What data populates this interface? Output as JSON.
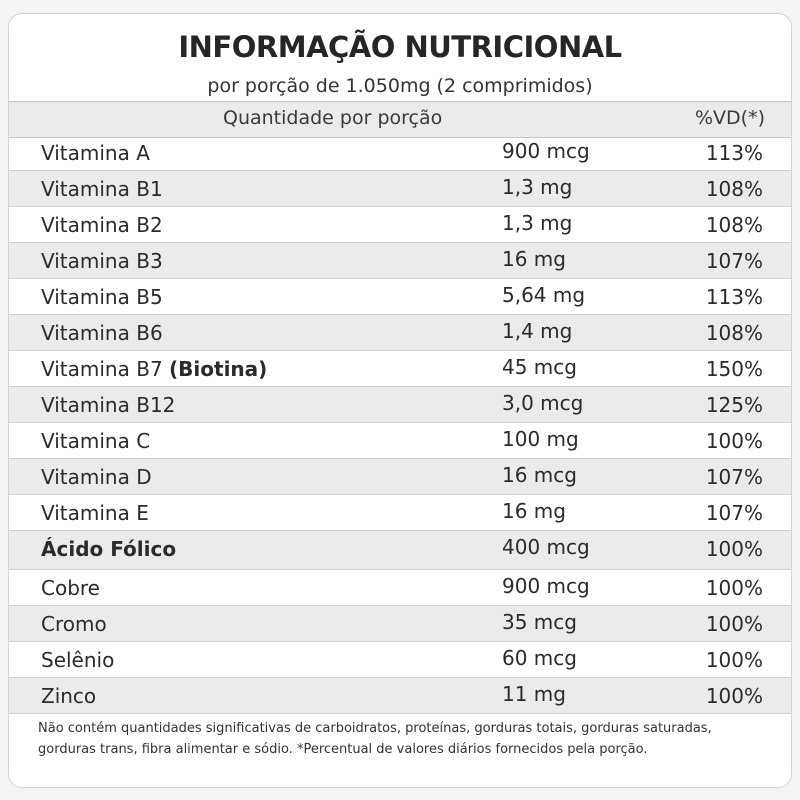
{
  "title": "INFORMAÇÃO NUTRICIONAL",
  "subtitle": "por porção de 1.050mg (2 comprimidos)",
  "header": {
    "quantity_label": "Quantidade por porção",
    "dv_label": "%VD(*)"
  },
  "rows": [
    {
      "name": "Vitamina A",
      "qty": "900 mcg",
      "vd": "113%"
    },
    {
      "name": "Vitamina B1",
      "qty": "1,3 mg",
      "vd": "108%"
    },
    {
      "name": "Vitamina B2",
      "qty": "1,3 mg",
      "vd": "108%"
    },
    {
      "name": "Vitamina B3",
      "qty": "16 mg",
      "vd": "107%"
    },
    {
      "name": "Vitamina B5",
      "qty": "5,64 mg",
      "vd": "113%"
    },
    {
      "name": "Vitamina B6",
      "qty": "1,4 mg",
      "vd": "108%"
    },
    {
      "name": "Vitamina B7",
      "name_extra": "(Biotina)",
      "qty": "45 mcg",
      "vd": "150%"
    },
    {
      "name": "Vitamina B12",
      "qty": "3,0 mcg",
      "vd": "125%"
    },
    {
      "name": "Vitamina C",
      "qty": "100 mg",
      "vd": "100%"
    },
    {
      "name": "Vitamina D",
      "qty": "16 mcg",
      "vd": "107%"
    },
    {
      "name": "Vitamina E",
      "qty": "16 mg",
      "vd": "107%"
    },
    {
      "name": "Ácido Fólico",
      "qty": "400 mcg",
      "vd": "100%"
    },
    {
      "name": "Cobre",
      "qty": "900 mcg",
      "vd": "100%"
    },
    {
      "name": "Cromo",
      "qty": "35 mcg",
      "vd": "100%"
    },
    {
      "name": "Selênio",
      "qty": "60 mcg",
      "vd": "100%"
    },
    {
      "name": "Zinco",
      "qty": "11 mg",
      "vd": "100%"
    }
  ],
  "footnote": "Não contém quantidades significativas de carboidratos, proteínas, gorduras totais, gorduras saturadas, gorduras trans, fibra alimentar e sódio. *Percentual de valores diários fornecidos pela porção."
}
